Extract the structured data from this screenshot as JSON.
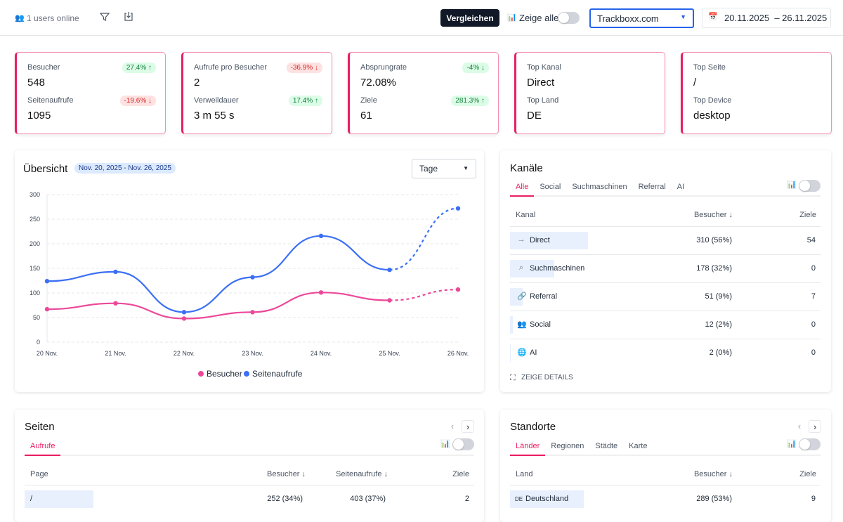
{
  "topbar": {
    "users_online": "1 users online",
    "compare_label": "Vergleichen",
    "show_all_label": "Zeige alle",
    "site": "Trackboxx.com",
    "date_range": "20.11.2025  – 26.11.2025"
  },
  "kpis": [
    {
      "label1": "Besucher",
      "value1": "548",
      "badge1": "27.4% ↑",
      "trend1": "up",
      "label2": "Seitenaufrufe",
      "value2": "1095",
      "badge2": "-19.6% ↓",
      "trend2": "down"
    },
    {
      "label1": "Aufrufe pro Besucher",
      "value1": "2",
      "badge1": "-36.9% ↓",
      "trend1": "down",
      "label2": "Verweildauer",
      "value2": "3 m 55 s",
      "badge2": "17.4% ↑",
      "trend2": "up"
    },
    {
      "label1": "Absprungrate",
      "value1": "72.08%",
      "badge1": "-4% ↓",
      "trend1": "up",
      "label2": "Ziele",
      "value2": "61",
      "badge2": "281.3% ↑",
      "trend2": "up"
    },
    {
      "label1": "Top Kanal",
      "value1": "Direct",
      "label2": "Top Land",
      "value2": "DE"
    },
    {
      "label1": "Top Seite",
      "value1": "/",
      "label2": "Top Device",
      "value2": "desktop"
    }
  ],
  "overview": {
    "title": "Übersicht",
    "range_badge": "Nov. 20, 2025 - Nov. 26, 2025",
    "granularity": "Tage"
  },
  "chart_data": {
    "type": "line",
    "categories": [
      "20 Nov.",
      "21 Nov.",
      "22 Nov.",
      "23 Nov.",
      "24 Nov.",
      "25 Nov.",
      "26 Nov."
    ],
    "ylim": [
      0,
      300
    ],
    "yticks": [
      "0",
      "50",
      "100",
      "150",
      "200",
      "250",
      "300"
    ],
    "grid": true,
    "legend": "bottom",
    "dashed_from_index": 5,
    "series": [
      {
        "name": "Besucher",
        "color": "#ec4899",
        "values": [
          67,
          79,
          48,
          61,
          101,
          85,
          107
        ]
      },
      {
        "name": "Seitenaufrufe",
        "color": "#3b6ff5",
        "values": [
          124,
          143,
          61,
          132,
          216,
          147,
          272
        ]
      }
    ]
  },
  "channels": {
    "title": "Kanäle",
    "tabs": [
      "Alle",
      "Social",
      "Suchmaschinen",
      "Referral",
      "AI"
    ],
    "headers": [
      "Kanal",
      "Besucher ↓",
      "Ziele"
    ],
    "rows": [
      {
        "icon": "arrow-right-icon",
        "glyph": "→",
        "name": "Direct",
        "visitors": "310 (56%)",
        "share": 56,
        "goals": "54"
      },
      {
        "icon": "search-icon",
        "glyph": "⌕",
        "name": "Suchmaschinen",
        "visitors": "178 (32%)",
        "share": 32,
        "goals": "0"
      },
      {
        "icon": "link-icon",
        "glyph": "🔗",
        "name": "Referral",
        "visitors": "51 (9%)",
        "share": 9,
        "goals": "7"
      },
      {
        "icon": "users-icon",
        "glyph": "👥",
        "name": "Social",
        "visitors": "12 (2%)",
        "share": 2,
        "goals": "0"
      },
      {
        "icon": "globe-icon",
        "glyph": "🌐",
        "name": "AI",
        "visitors": "2 (0%)",
        "share": 0,
        "goals": "0"
      }
    ],
    "details": "ZEIGE DETAILS"
  },
  "pages": {
    "title": "Seiten",
    "tabs": [
      "Aufrufe"
    ],
    "headers": [
      "Page",
      "Besucher ↓",
      "Seitenaufrufe ↓",
      "Ziele"
    ],
    "rows": [
      {
        "page": "/",
        "visitors": "252 (34%)",
        "views": "403 (37%)",
        "goals": "2"
      }
    ]
  },
  "locations": {
    "title": "Standorte",
    "tabs": [
      "Länder",
      "Regionen",
      "Städte",
      "Karte"
    ],
    "headers": [
      "Land",
      "Besucher ↓",
      "Ziele"
    ],
    "rows": [
      {
        "code": "DE",
        "name": "Deutschland",
        "visitors": "289 (53%)",
        "goals": "9"
      }
    ]
  }
}
